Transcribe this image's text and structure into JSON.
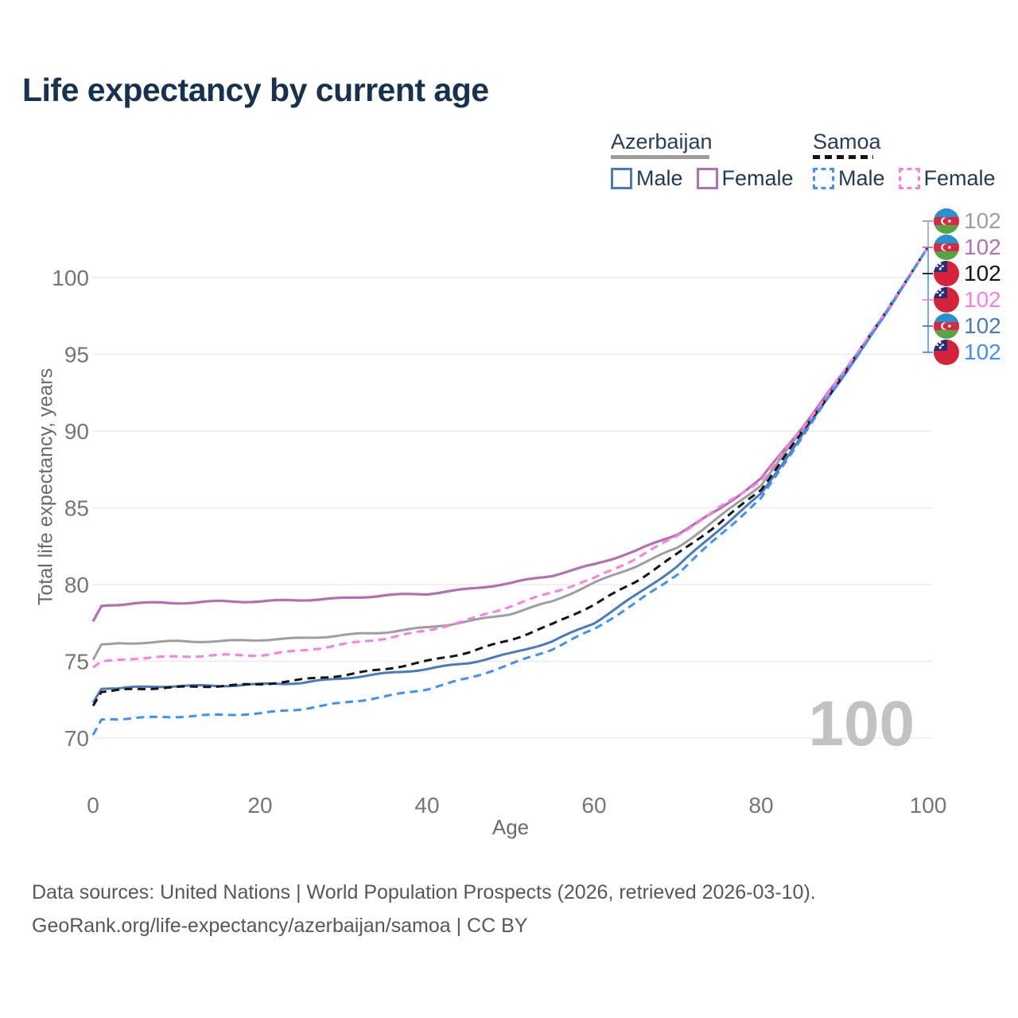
{
  "title": "Life expectancy by current age",
  "legend": {
    "groups": [
      {
        "label": "Azerbaijan",
        "line_style": "solid",
        "underline_color": "#9e9e9e",
        "entries": [
          {
            "label": "Male",
            "color": "#4a7abc",
            "dashed": false
          },
          {
            "label": "Female",
            "color": "#b171b1",
            "dashed": false
          }
        ]
      },
      {
        "label": "Samoa",
        "line_style": "dashed",
        "underline_color": "#141414",
        "entries": [
          {
            "label": "Male",
            "color": "#4190f7",
            "dashed": true
          },
          {
            "label": "Female",
            "color": "#fb7fe3",
            "dashed": true
          }
        ]
      }
    ]
  },
  "chart_data": {
    "type": "line",
    "title": "Life expectancy by current age",
    "xlabel": "Age",
    "ylabel": "Total life expectancy, years",
    "xlim": [
      0,
      100
    ],
    "ylim": [
      68.5,
      102.5
    ],
    "xticks": [
      0,
      20,
      40,
      60,
      80,
      100
    ],
    "yticks": [
      70,
      75,
      80,
      85,
      90,
      95,
      100
    ],
    "grid": "horizontal-only",
    "legend_position": "top-right",
    "x": [
      0,
      1,
      5,
      10,
      15,
      20,
      25,
      30,
      35,
      40,
      45,
      50,
      55,
      60,
      65,
      70,
      75,
      80,
      85,
      90,
      95,
      100
    ],
    "series": [
      {
        "id": "azerbaijan-all",
        "name": "Azerbaijan (all)",
        "color": "#9e9e9e",
        "dashed": false,
        "width": 3,
        "values": [
          75.1,
          76.1,
          76.2,
          76.3,
          76.3,
          76.4,
          76.5,
          76.7,
          76.9,
          77.2,
          77.6,
          78.1,
          78.9,
          80.1,
          81.2,
          82.4,
          84.4,
          86.5,
          90.1,
          93.8,
          97.8,
          102
        ]
      },
      {
        "id": "azerbaijan-female",
        "name": "Azerbaijan Female",
        "color": "#b171b1",
        "dashed": false,
        "width": 3.2,
        "values": [
          77.6,
          78.6,
          78.8,
          78.8,
          78.9,
          78.9,
          79.0,
          79.1,
          79.3,
          79.4,
          79.7,
          80.1,
          80.6,
          81.3,
          82.2,
          83.3,
          84.9,
          86.9,
          90.3,
          93.9,
          97.8,
          102
        ]
      },
      {
        "id": "azerbaijan-male",
        "name": "Azerbaijan Male",
        "color": "#4a7abc",
        "dashed": false,
        "width": 3,
        "values": [
          72.3,
          73.2,
          73.3,
          73.4,
          73.4,
          73.5,
          73.6,
          73.9,
          74.2,
          74.5,
          74.9,
          75.5,
          76.3,
          77.5,
          79.3,
          81.2,
          83.6,
          85.9,
          89.8,
          93.7,
          97.7,
          102
        ]
      },
      {
        "id": "samoa-all",
        "name": "Samoa (all)",
        "color": "#141414",
        "dashed": true,
        "width": 3,
        "values": [
          72.1,
          73.0,
          73.2,
          73.3,
          73.4,
          73.5,
          73.8,
          74.1,
          74.5,
          75.0,
          75.6,
          76.4,
          77.4,
          78.7,
          80.2,
          82.0,
          84.0,
          86.2,
          90.0,
          93.8,
          97.8,
          102
        ]
      },
      {
        "id": "samoa-female",
        "name": "Samoa Female",
        "color": "#fb7fe3",
        "dashed": true,
        "width": 3,
        "values": [
          74.6,
          75.0,
          75.2,
          75.3,
          75.4,
          75.4,
          75.7,
          76.1,
          76.5,
          77.0,
          77.7,
          78.6,
          79.5,
          80.4,
          81.7,
          83.2,
          85.0,
          86.8,
          90.2,
          93.9,
          97.8,
          102
        ]
      },
      {
        "id": "samoa-male",
        "name": "Samoa Male",
        "color": "#4190f7",
        "dashed": true,
        "width": 3,
        "values": [
          70.2,
          71.2,
          71.3,
          71.4,
          71.5,
          71.6,
          71.9,
          72.3,
          72.7,
          73.2,
          73.9,
          74.8,
          75.8,
          77.1,
          78.8,
          80.7,
          83.2,
          85.6,
          89.7,
          93.7,
          97.7,
          102
        ]
      }
    ]
  },
  "end_markers": [
    {
      "series_id": "azerbaijan-all",
      "flag": "azerbaijan",
      "value": "102",
      "color": "#9e9e9e"
    },
    {
      "series_id": "azerbaijan-female",
      "flag": "azerbaijan",
      "value": "102",
      "color": "#b171b1"
    },
    {
      "series_id": "samoa-all",
      "flag": "samoa",
      "value": "102",
      "color": "#141414"
    },
    {
      "series_id": "samoa-female",
      "flag": "samoa",
      "value": "102",
      "color": "#fb7fe3"
    },
    {
      "series_id": "azerbaijan-male",
      "flag": "azerbaijan",
      "value": "102",
      "color": "#4a7abc"
    },
    {
      "series_id": "samoa-male",
      "flag": "samoa",
      "value": "102",
      "color": "#4190f7"
    }
  ],
  "watermark": "100",
  "footer": {
    "line1": "Data sources: United Nations | World Population Prospects (2026, retrieved 2026-03-10).",
    "line2": "GeoRank.org/life-expectancy/azerbaijan/samoa | CC BY"
  },
  "colors": {
    "title": "#17324f",
    "tick_label": "#757575",
    "axis_title": "#6a6a6a",
    "gridline": "#ebebeb",
    "watermark": "#c2c2c2",
    "footer": "#575757"
  }
}
